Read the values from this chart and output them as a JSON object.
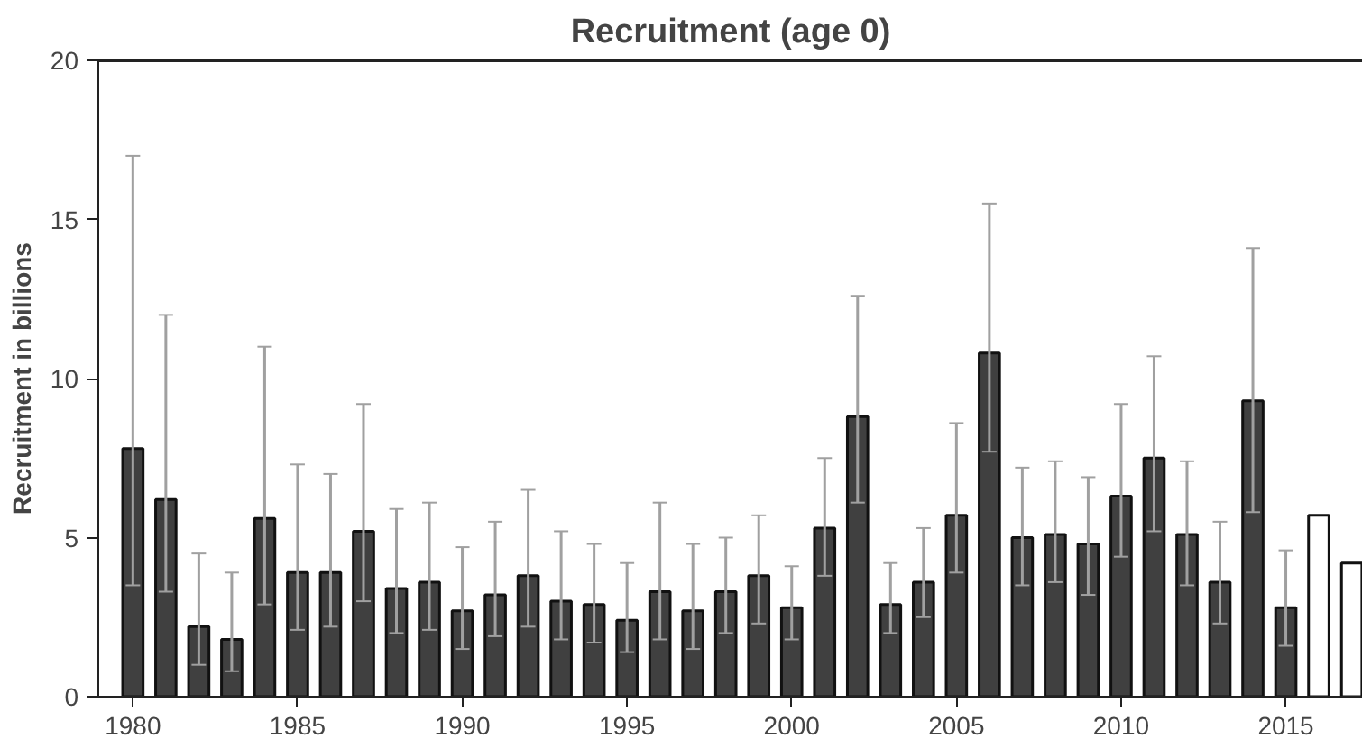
{
  "chart_data": {
    "type": "bar",
    "title": "Recruitment (age 0)",
    "ylabel": "Recruitment in billions",
    "x": [
      1980,
      1981,
      1982,
      1983,
      1984,
      1985,
      1986,
      1987,
      1988,
      1989,
      1990,
      1991,
      1992,
      1993,
      1994,
      1995,
      1996,
      1997,
      1998,
      1999,
      2000,
      2001,
      2002,
      2003,
      2004,
      2005,
      2006,
      2007,
      2008,
      2009,
      2010,
      2011,
      2012,
      2013,
      2014,
      2015,
      2016,
      2017
    ],
    "values": [
      7.8,
      6.2,
      2.2,
      1.8,
      5.6,
      3.9,
      3.9,
      5.2,
      3.4,
      3.6,
      2.7,
      3.2,
      3.8,
      3.0,
      2.9,
      2.4,
      3.3,
      2.7,
      3.3,
      3.8,
      2.8,
      5.3,
      8.8,
      2.9,
      3.6,
      5.7,
      10.8,
      5.0,
      5.1,
      4.8,
      6.3,
      7.5,
      5.1,
      3.6,
      9.3,
      2.8,
      5.7,
      4.2
    ],
    "colors": [
      "#404040",
      "#404040",
      "#404040",
      "#404040",
      "#404040",
      "#404040",
      "#404040",
      "#404040",
      "#404040",
      "#404040",
      "#404040",
      "#404040",
      "#404040",
      "#404040",
      "#404040",
      "#404040",
      "#404040",
      "#404040",
      "#404040",
      "#404040",
      "#404040",
      "#404040",
      "#404040",
      "#404040",
      "#404040",
      "#404040",
      "#404040",
      "#404040",
      "#404040",
      "#404040",
      "#404040",
      "#404040",
      "#404040",
      "#404040",
      "#404040",
      "#404040",
      "#ffffff",
      "#ffffff"
    ],
    "errors": [
      [
        3.5,
        17
      ],
      [
        3.3,
        12
      ],
      [
        1.0,
        4.5
      ],
      [
        0.8,
        3.9
      ],
      [
        2.9,
        11
      ],
      [
        2.1,
        7.3
      ],
      [
        2.2,
        7.0
      ],
      [
        3.0,
        9.2
      ],
      [
        2.0,
        5.9
      ],
      [
        2.1,
        6.1
      ],
      [
        1.5,
        4.7
      ],
      [
        1.9,
        5.5
      ],
      [
        2.2,
        6.5
      ],
      [
        1.8,
        5.2
      ],
      [
        1.7,
        4.8
      ],
      [
        1.4,
        4.2
      ],
      [
        1.8,
        6.1
      ],
      [
        1.5,
        4.8
      ],
      [
        2.0,
        5.0
      ],
      [
        2.3,
        5.7
      ],
      [
        1.8,
        4.1
      ],
      [
        3.8,
        7.5
      ],
      [
        6.1,
        12.6
      ],
      [
        2.0,
        4.2
      ],
      [
        2.5,
        5.3
      ],
      [
        3.9,
        8.6
      ],
      [
        7.7,
        15.5
      ],
      [
        3.5,
        7.2
      ],
      [
        3.6,
        7.4
      ],
      [
        3.2,
        6.9
      ],
      [
        4.4,
        9.2
      ],
      [
        5.2,
        10.7
      ],
      [
        3.5,
        7.4
      ],
      [
        2.3,
        5.5
      ],
      [
        5.8,
        14.1
      ],
      [
        1.6,
        4.6
      ],
      null,
      null
    ],
    "xlim": [
      1978.95,
      2017.34
    ],
    "xticks": [
      1980,
      1985,
      1990,
      1995,
      2000,
      2005,
      2010,
      2015
    ],
    "ylim": [
      0,
      20
    ],
    "yticks": [
      0,
      5,
      10,
      15,
      20
    ],
    "grid": false
  }
}
